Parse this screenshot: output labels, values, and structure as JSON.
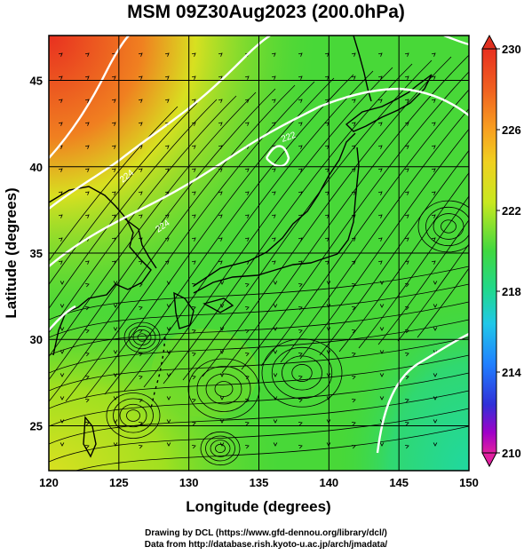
{
  "title": "MSM 09Z30Aug2023 (200.0hPa)",
  "map": {
    "xlabel": "Longitude (degrees)",
    "ylabel": "Latitude  (degrees)",
    "lon_ticks": [
      "120",
      "125",
      "130",
      "135",
      "140",
      "145",
      "150"
    ],
    "lat_ticks": [
      "45",
      "40",
      "35",
      "30",
      "25"
    ],
    "lon_range": [
      120,
      150
    ],
    "lat_range": [
      22.4,
      47.6
    ],
    "grid_lons": [
      120,
      125,
      130,
      135,
      140,
      145,
      150
    ],
    "grid_lats": [
      25,
      30,
      35,
      40,
      45
    ],
    "contour_labels": [
      "224",
      "224",
      "222"
    ],
    "field": "temperature shading with wind streamlines"
  },
  "colorbar": {
    "ticks": [
      "230",
      "226",
      "222",
      "218",
      "214",
      "210"
    ],
    "min": 210,
    "max": 230,
    "colors": [
      "#e0208f",
      "#a000c8",
      "#3030d8",
      "#2080ff",
      "#20c8e8",
      "#20d890",
      "#20d040",
      "#80e020",
      "#c8e820",
      "#f0d020",
      "#f8a020",
      "#f05020",
      "#e02020"
    ]
  },
  "credits": {
    "line1": "Drawing by DCL (https://www.gfd-dennou.org/library/dcl/)",
    "line2": "Data from http://database.rish.kyoto-u.ac.jp/arch/jmadata/"
  }
}
